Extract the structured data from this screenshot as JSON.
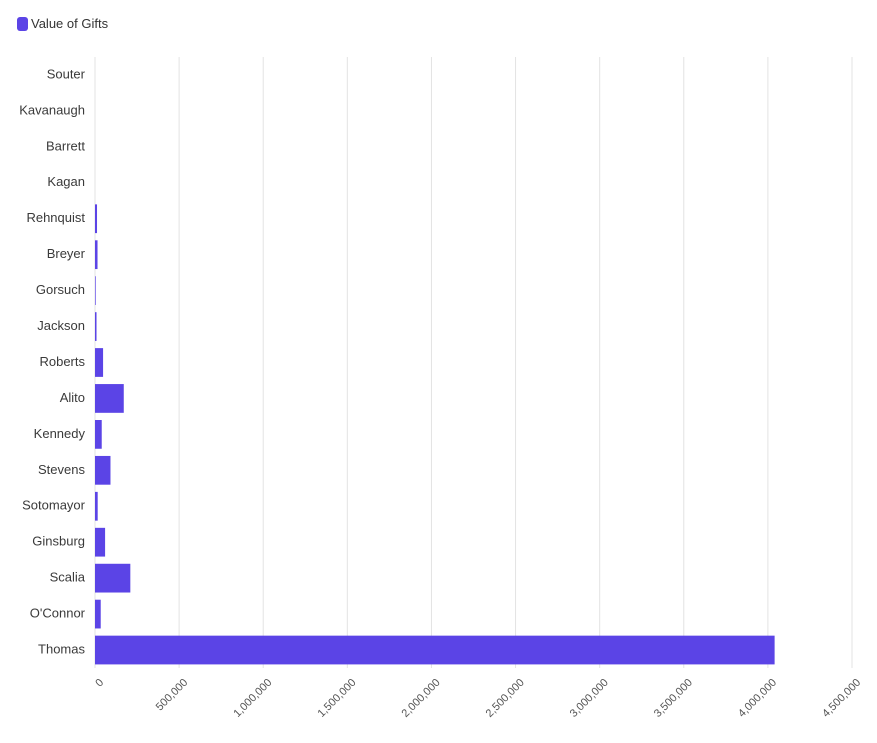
{
  "legend": {
    "label": "Value of Gifts",
    "color": "#5b44e6"
  },
  "chart_data": {
    "type": "bar",
    "orientation": "horizontal",
    "title": "",
    "xlabel": "",
    "ylabel": "",
    "xlim": [
      0,
      4500000
    ],
    "grid": "vertical",
    "legend_position": "top-left",
    "bar_color": "#5b44e6",
    "categories": [
      "Souter",
      "Kavanaugh",
      "Barrett",
      "Kagan",
      "Rehnquist",
      "Breyer",
      "Gorsuch",
      "Jackson",
      "Roberts",
      "Alito",
      "Kennedy",
      "Stevens",
      "Sotomayor",
      "Ginsburg",
      "Scalia",
      "O'Connor",
      "Thomas"
    ],
    "series": [
      {
        "name": "Value of Gifts",
        "values": [
          0,
          0,
          0,
          0,
          12000,
          15000,
          4000,
          9000,
          48000,
          171000,
          40000,
          92000,
          16000,
          60000,
          210000,
          34000,
          4040000
        ]
      }
    ],
    "x_ticks": [
      "0",
      "500,000",
      "1,000,000",
      "1,500,000",
      "2,000,000",
      "2,500,000",
      "3,000,000",
      "3,500,000",
      "4,000,000",
      "4,500,000"
    ],
    "x_tick_values": [
      0,
      500000,
      1000000,
      1500000,
      2000000,
      2500000,
      3000000,
      3500000,
      4000000,
      4500000
    ]
  }
}
